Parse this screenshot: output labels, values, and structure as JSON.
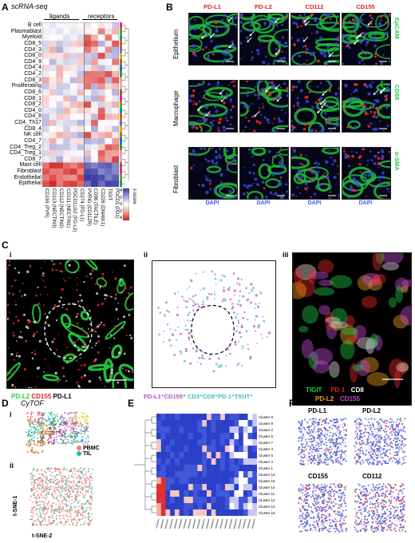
{
  "panel_a": {
    "letter": "A",
    "title": "scRNA-seq",
    "group_ligands": "ligands",
    "group_receptors": "receptors",
    "rows": [
      "B cell",
      "Plasmablast",
      "Myeloid",
      "CD8_5",
      "CD4_3",
      "CD8_0",
      "CD4_9",
      "CD4_4",
      "CD4_2",
      "CD8_3",
      "Proliferating",
      "CD8_6",
      "CD8_1",
      "CD8_2",
      "CD4_0",
      "CD4_8",
      "CD4_Th17",
      "CD8_4",
      "NK cell",
      "CD4_7",
      "CD4_Treg_2",
      "CD4_Treg_1",
      "CD8_7",
      "Mast cell",
      "Fibroblast",
      "Endothelial",
      "Epithelial"
    ],
    "cols": [
      "CD155 (PVR)",
      "CD113 (NECTIN3)",
      "CD112 (NECTIN2)",
      "CD111 (NECTIN1)",
      "PDCD1LG2 (PD-L2)",
      "CD274 (PD-L1)",
      "PVRIG (CD112R)",
      "CD96 (TACTILE)",
      "CD226 (DNAM-1)",
      "TIGIT",
      "PDCD1 (PD1)"
    ],
    "colorbar_title": "z-score",
    "colorbar_ticks": [
      "-4",
      "-2",
      "0",
      "2",
      "4"
    ]
  },
  "panel_b": {
    "letter": "B",
    "markers": [
      "PD-L1",
      "PD-L2",
      "CD112",
      "CD155"
    ],
    "rows": [
      "Epithelium",
      "Macrophage",
      "Fibroblast"
    ],
    "side_labels": [
      "EpCAM",
      "CD68",
      "α-SMA"
    ],
    "dapi": "DAPI"
  },
  "panel_c": {
    "letter": "C",
    "sub_i": "i",
    "sub_ii": "ii",
    "sub_iii": "iii",
    "legend_i": [
      {
        "text": "PD-L2",
        "color": "#22cc44"
      },
      {
        "text": "CD155",
        "color": "#e02020"
      },
      {
        "text": "PD-L1",
        "color": "#000000"
      }
    ],
    "legend_ii": [
      {
        "text": "PD-L1⁺CD155⁺",
        "color": "#b44fc8"
      },
      {
        "text": "CD3⁺CD8⁺PD-1⁺TIGIT⁺",
        "color": "#3fb8c8"
      }
    ],
    "legend_iii_line1": [
      {
        "text": "TIGIT",
        "color": "#22cc44"
      },
      {
        "text": "PD-1",
        "color": "#e02020"
      },
      {
        "text": "CD8",
        "color": "#ffffff"
      }
    ],
    "legend_iii_line2": [
      {
        "text": "PD-L2",
        "color": "#f2a21a"
      },
      {
        "text": "CD155",
        "color": "#c84fd8"
      }
    ]
  },
  "panel_d": {
    "letter": "D",
    "title": "CyTOF",
    "sub_i": "i",
    "sub_ii": "ii",
    "legend": [
      {
        "text": "PBMC",
        "color": "#f07b6b"
      },
      {
        "text": "TIL",
        "color": "#2ab5b0"
      }
    ],
    "axis_y": "t-SNE-1",
    "axis_x": "t-SNE-2"
  },
  "panel_e": {
    "letter": "E",
    "clusters": [
      "Cluster 8",
      "Cluster 9",
      "Cluster 2",
      "Cluster 5",
      "Cluster 7",
      "Cluster 4",
      "Cluster 6",
      "Cluster 3",
      "Cluster 1",
      "Cluster 13",
      "Cluster 15",
      "Cluster 14",
      "Cluster 11",
      "Cluster 12",
      "Cluster 10",
      "Cluster 16"
    ]
  },
  "panel_f": {
    "letter": "F",
    "labels": [
      "PD-L1",
      "PD-L2",
      "CD155",
      "CD112"
    ]
  }
}
